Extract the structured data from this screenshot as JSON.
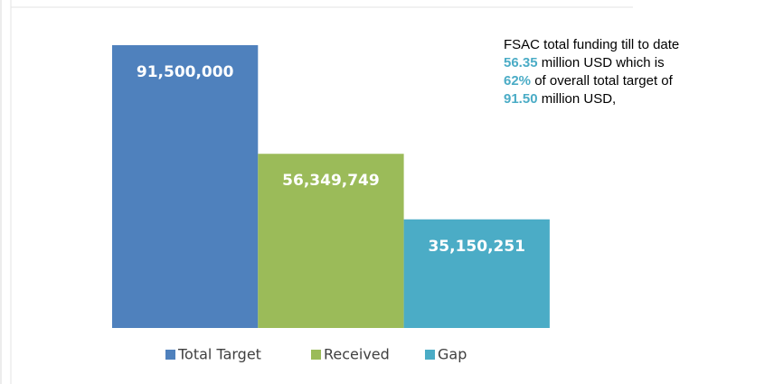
{
  "chart_data": {
    "type": "bar",
    "categories": [
      "Total Target",
      "Received",
      "Gap"
    ],
    "values": [
      91500000,
      56349749,
      35150251
    ],
    "value_labels": [
      "91,500,000",
      "56,349,749",
      "35,150,251"
    ],
    "colors": [
      "#4f81bd",
      "#9bbb59",
      "#4bacc6"
    ],
    "legend": "bottom",
    "highlight_color": "#4bacc6",
    "annotation": [
      [
        {
          "text": "FSAC total funding till to date"
        }
      ],
      [
        {
          "text": "56.35",
          "highlight": true
        },
        {
          "text": " million USD which is"
        }
      ],
      [
        {
          "text": "62%",
          "highlight": true
        },
        {
          "text": " of overall total target of"
        }
      ],
      [
        {
          "text": "91.50",
          "highlight": true
        },
        {
          "text": " million USD,"
        }
      ]
    ]
  }
}
